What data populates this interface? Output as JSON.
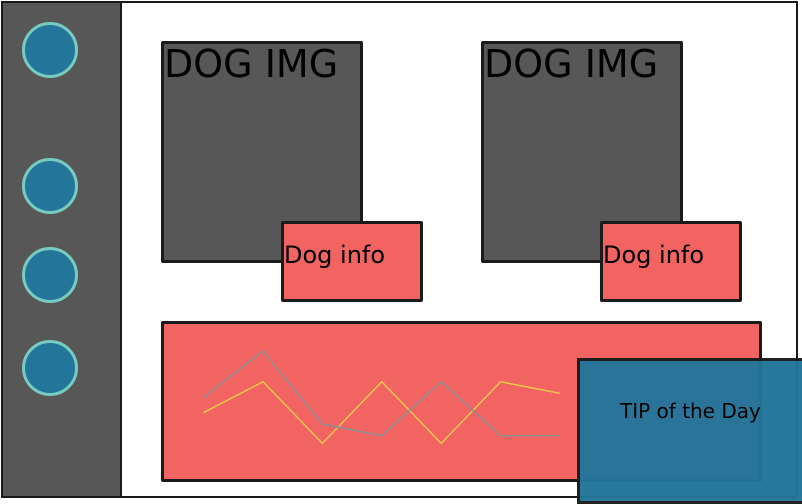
{
  "colors": {
    "sidebar": "#575757",
    "nav_dot_fill": "#23759a",
    "nav_dot_ring": "#78cbc0",
    "card": "#575757",
    "info": "#f26462",
    "chart_panel": "#f26462",
    "chart_line_a": "#e8c94a",
    "chart_line_b": "#8a8f92",
    "tip": "#23759a"
  },
  "sidebar": {
    "items": [
      {
        "icon": "circle-icon"
      },
      {
        "icon": "circle-icon"
      },
      {
        "icon": "circle-icon"
      },
      {
        "icon": "circle-icon"
      }
    ]
  },
  "cards": [
    {
      "image_label": "DOG IMG",
      "info_label": "Dog info"
    },
    {
      "image_label": "DOG IMG",
      "info_label": "Dog info"
    }
  ],
  "chart_data": {
    "type": "line",
    "x": [
      0,
      1,
      2,
      3,
      4,
      5,
      6
    ],
    "series": [
      {
        "color": "#e8c94a",
        "values": [
          0.6,
          1.0,
          0.2,
          1.0,
          0.2,
          1.0,
          0.85
        ]
      },
      {
        "color": "#8a8f92",
        "values": [
          0.8,
          1.4,
          0.45,
          0.3,
          1.0,
          0.3,
          0.3
        ]
      }
    ],
    "ylim": [
      0,
      1.5
    ],
    "grid": false
  },
  "tip": {
    "label": "TIP of the Day"
  }
}
